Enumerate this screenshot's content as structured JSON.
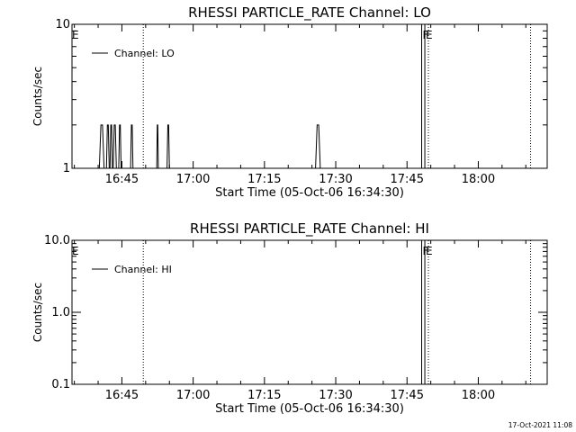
{
  "footer": {
    "timestamp": "17-Oct-2021 11:08"
  },
  "chart_data": [
    {
      "type": "line",
      "title": "RHESSI PARTICLE_RATE Channel: LO",
      "xlabel": "Start Time (05-Oct-06 16:34:30)",
      "ylabel": "Counts/sec",
      "yscale": "log",
      "ylim": [
        1,
        10
      ],
      "y_ticks": [
        {
          "value": 1,
          "label": "1"
        },
        {
          "value": 10,
          "label": "10"
        }
      ],
      "xlim": [
        "16:34:30",
        "18:14:30"
      ],
      "x_ticks": [
        "16:45",
        "17:00",
        "17:15",
        "17:30",
        "17:45",
        "18:00"
      ],
      "legend": {
        "position": "top-left",
        "entries": [
          "Channel: LO"
        ]
      },
      "grid": false,
      "series": [
        {
          "name": "Channel: LO",
          "bursts": [
            {
              "start": "16:40:15",
              "end": "16:41:15",
              "value": 2
            },
            {
              "start": "16:41:45",
              "end": "16:42:20",
              "value": 2
            },
            {
              "start": "16:42:30",
              "end": "16:43:00",
              "value": 2
            },
            {
              "start": "16:43:10",
              "end": "16:43:50",
              "value": 2
            },
            {
              "start": "16:44:20",
              "end": "16:44:50",
              "value": 2
            },
            {
              "start": "16:46:50",
              "end": "16:47:20",
              "value": 2
            },
            {
              "start": "16:52:20",
              "end": "16:52:40",
              "value": 2
            },
            {
              "start": "16:54:30",
              "end": "16:55:00",
              "value": 2
            },
            {
              "start": "17:25:45",
              "end": "17:26:45",
              "value": 2
            }
          ]
        }
      ],
      "annotations": [
        {
          "time": "16:34:30",
          "label": "E"
        },
        {
          "time": "17:48:05",
          "label": "F"
        },
        {
          "time": "17:48:45",
          "label": "E"
        }
      ],
      "dotted_markers": [
        "16:49:30",
        "17:49:30",
        "18:11:00"
      ]
    },
    {
      "type": "line",
      "title": "RHESSI PARTICLE_RATE Channel: HI",
      "xlabel": "Start Time (05-Oct-06 16:34:30)",
      "ylabel": "Counts/sec",
      "yscale": "log",
      "ylim": [
        0.1,
        10
      ],
      "y_ticks": [
        {
          "value": 0.1,
          "label": "0.1"
        },
        {
          "value": 1,
          "label": "1.0"
        },
        {
          "value": 10,
          "label": "10.0"
        }
      ],
      "xlim": [
        "16:34:30",
        "18:14:30"
      ],
      "x_ticks": [
        "16:45",
        "17:00",
        "17:15",
        "17:30",
        "17:45",
        "18:00"
      ],
      "legend": {
        "position": "top-left",
        "entries": [
          "Channel: HI"
        ]
      },
      "grid": false,
      "series": [
        {
          "name": "Channel: HI",
          "bursts": []
        }
      ],
      "annotations": [
        {
          "time": "16:34:30",
          "label": "E"
        },
        {
          "time": "17:48:05",
          "label": "F"
        },
        {
          "time": "17:48:45",
          "label": "E"
        }
      ],
      "dotted_markers": [
        "16:49:30",
        "17:49:30",
        "18:11:00"
      ]
    }
  ]
}
